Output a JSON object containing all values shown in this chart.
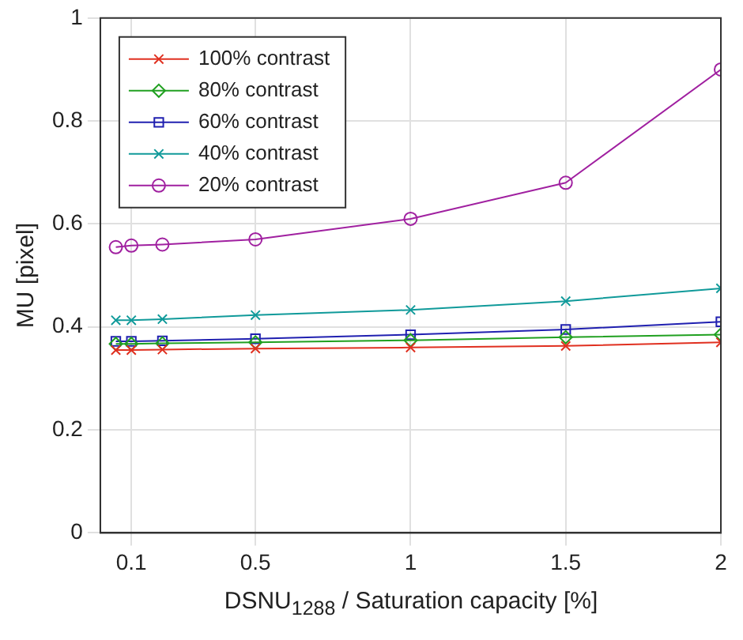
{
  "chart_data": {
    "type": "line",
    "xlabel": "DSNU$_{1288}$ / Saturation capacity [%]",
    "ylabel": "MU [pixel]",
    "x": [
      0.05,
      0.1,
      0.2,
      0.5,
      1,
      1.5,
      2
    ],
    "xlim": [
      0,
      2
    ],
    "xticks": [
      0.1,
      0.5,
      1,
      1.5,
      2
    ],
    "ylim": [
      0,
      1
    ],
    "yticks": [
      0,
      0.2,
      0.4,
      0.6,
      0.8,
      1
    ],
    "grid": true,
    "legend": "top left",
    "line_style": "solid",
    "series": [
      {
        "name": "100% contrast",
        "color": "#e03020",
        "marker": "cross",
        "values": [
          0.355,
          0.355,
          0.356,
          0.358,
          0.36,
          0.363,
          0.37
        ]
      },
      {
        "name": "80% contrast",
        "color": "#20a020",
        "marker": "diamond",
        "values": [
          0.367,
          0.367,
          0.368,
          0.37,
          0.374,
          0.38,
          0.385
        ]
      },
      {
        "name": "60% contrast",
        "color": "#2020b0",
        "marker": "square",
        "values": [
          0.372,
          0.372,
          0.373,
          0.377,
          0.385,
          0.395,
          0.41
        ]
      },
      {
        "name": "40% contrast",
        "color": "#109a9a",
        "marker": "cross",
        "values": [
          0.413,
          0.413,
          0.415,
          0.423,
          0.433,
          0.45,
          0.475
        ]
      },
      {
        "name": "20% contrast",
        "color": "#a020a0",
        "marker": "circle",
        "values": [
          0.555,
          0.558,
          0.56,
          0.57,
          0.61,
          0.68,
          0.9
        ]
      }
    ]
  }
}
